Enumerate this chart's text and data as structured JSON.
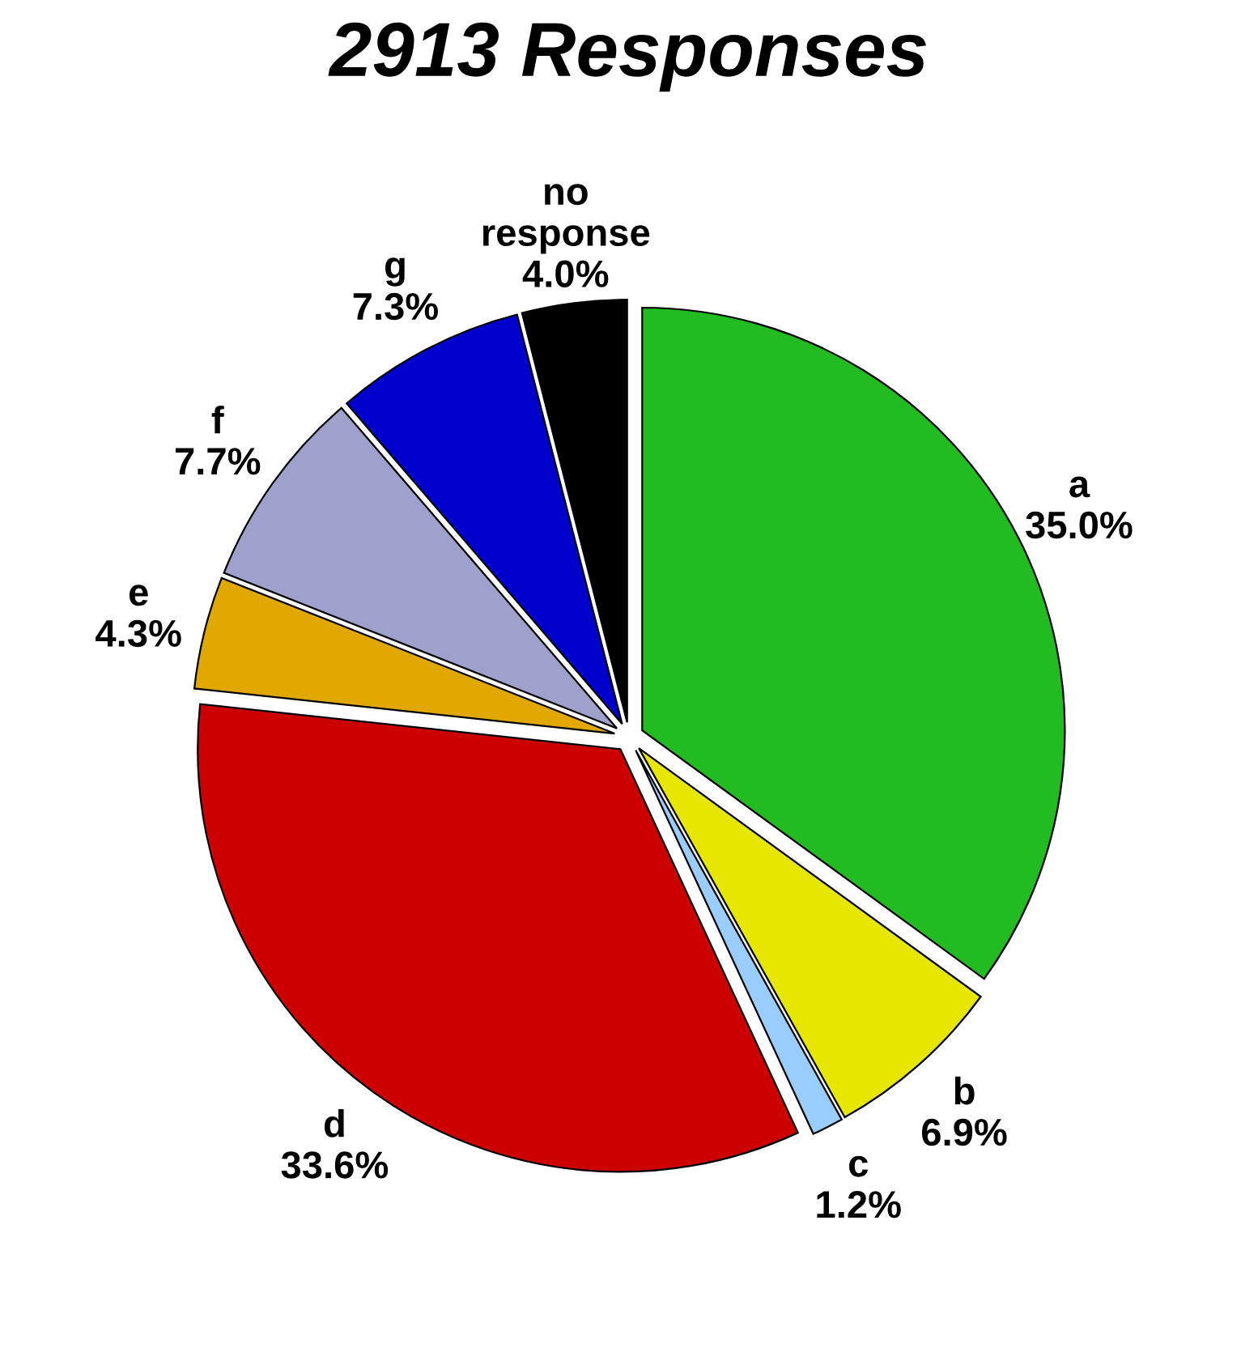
{
  "chart_data": {
    "type": "pie",
    "title": "2913 Responses",
    "categories": [
      "a",
      "b",
      "c",
      "d",
      "e",
      "f",
      "g",
      "no\nresponse"
    ],
    "values": [
      35.0,
      6.9,
      1.2,
      33.6,
      4.3,
      7.7,
      7.3,
      4.0
    ],
    "value_labels": [
      "35.0%",
      "6.9%",
      "1.2%",
      "33.6%",
      "4.3%",
      "7.7%",
      "7.3%",
      "4.0%"
    ],
    "colors": [
      "#22bb22",
      "#e6e600",
      "#99ccff",
      "#cc0000",
      "#e0a800",
      "#a0a0cc",
      "#0000cc",
      "#000000"
    ]
  }
}
